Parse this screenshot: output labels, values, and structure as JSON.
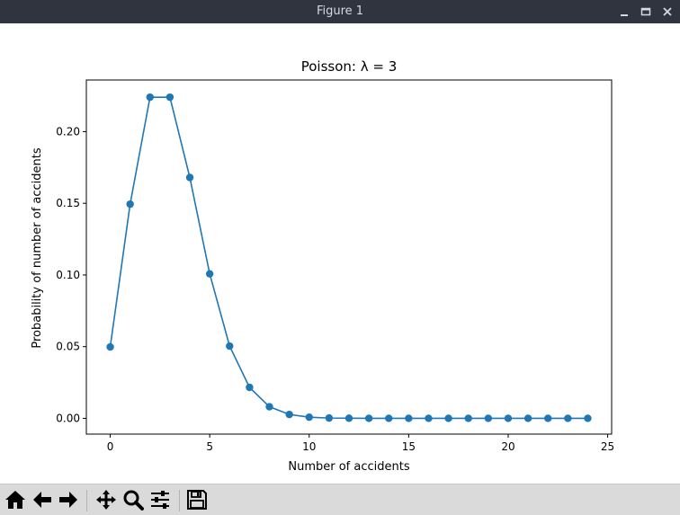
{
  "window": {
    "title": "Figure 1",
    "buttons": [
      {
        "name": "minimize-icon"
      },
      {
        "name": "maximize-icon"
      },
      {
        "name": "close-icon"
      }
    ]
  },
  "toolbar": {
    "buttons": [
      {
        "name": "home-icon"
      },
      {
        "name": "back-arrow-icon"
      },
      {
        "name": "forward-arrow-icon"
      },
      {
        "name": "pan-icon"
      },
      {
        "name": "zoom-icon"
      },
      {
        "name": "configure-subplots-icon"
      },
      {
        "name": "save-icon"
      }
    ]
  },
  "chart_data": {
    "type": "line",
    "title": "Poisson: λ = 3",
    "xlabel": "Number of accidents",
    "ylabel": "Probability of number of accidents",
    "xlim": [
      -1.2,
      25.2
    ],
    "ylim": [
      -0.011,
      0.236
    ],
    "xticks": [
      0,
      5,
      10,
      15,
      20,
      25
    ],
    "yticks": [
      0.0,
      0.05,
      0.1,
      0.15,
      0.2
    ],
    "xtick_labels": [
      "0",
      "5",
      "10",
      "15",
      "20",
      "25"
    ],
    "ytick_labels": [
      "0.00",
      "0.05",
      "0.10",
      "0.15",
      "0.20"
    ],
    "grid": false,
    "color": "#1f77b4",
    "marker": "circle",
    "x": [
      0,
      1,
      2,
      3,
      4,
      5,
      6,
      7,
      8,
      9,
      10,
      11,
      12,
      13,
      14,
      15,
      16,
      17,
      18,
      19,
      20,
      21,
      22,
      23,
      24
    ],
    "values": [
      0.0498,
      0.1494,
      0.224,
      0.224,
      0.168,
      0.1008,
      0.0504,
      0.0216,
      0.0081,
      0.0027,
      0.0008,
      0.0002,
      0.0001,
      0.0,
      0.0,
      0.0,
      0.0,
      0.0,
      0.0,
      0.0,
      0.0,
      0.0,
      0.0,
      0.0,
      0.0
    ]
  }
}
